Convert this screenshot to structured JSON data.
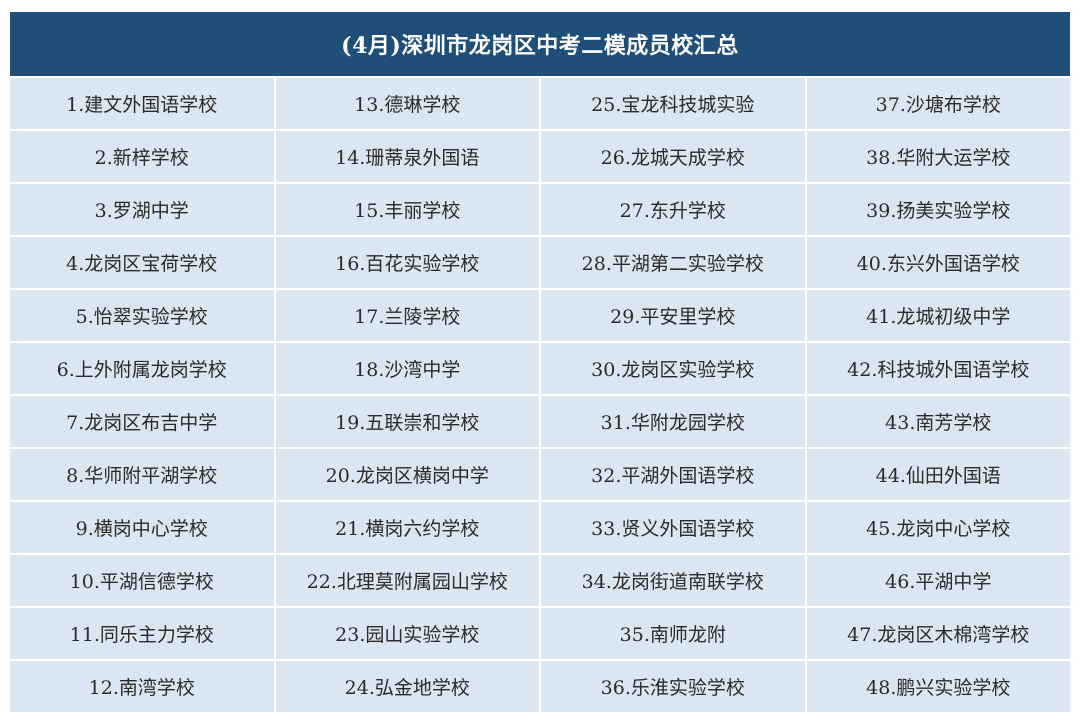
{
  "title": "(4月)深圳市龙岗区中考二模成员校汇总",
  "colors": {
    "header_bg": "#1f4e79",
    "header_text": "#ffffff",
    "cell_bg": "#dae6f2",
    "cell_text": "#2b2b2b"
  },
  "rows": [
    [
      "1.建文外国语学校",
      "13.德琳学校",
      "25.宝龙科技城实验",
      "37.沙塘布学校"
    ],
    [
      "2.新梓学校",
      "14.珊蒂泉外国语",
      "26.龙城天成学校",
      "38.华附大运学校"
    ],
    [
      "3.罗湖中学",
      "15.丰丽学校",
      "27.东升学校",
      "39.扬美实验学校"
    ],
    [
      "4.龙岗区宝荷学校",
      "16.百花实验学校",
      "28.平湖第二实验学校",
      "40.东兴外国语学校"
    ],
    [
      "5.怡翠实验学校",
      "17.兰陵学校",
      "29.平安里学校",
      "41.龙城初级中学"
    ],
    [
      "6.上外附属龙岗学校",
      "18.沙湾中学",
      "30.龙岗区实验学校",
      "42.科技城外国语学校"
    ],
    [
      "7.龙岗区布吉中学",
      "19.五联崇和学校",
      "31.华附龙园学校",
      "43.南芳学校"
    ],
    [
      "8.华师附平湖学校",
      "20.龙岗区横岗中学",
      "32.平湖外国语学校",
      "44.仙田外国语"
    ],
    [
      "9.横岗中心学校",
      "21.横岗六约学校",
      "33.贤义外国语学校",
      "45.龙岗中心学校"
    ],
    [
      "10.平湖信德学校",
      "22.北理莫附属园山学校",
      "34.龙岗街道南联学校",
      "46.平湖中学"
    ],
    [
      "11.同乐主力学校",
      "23.园山实验学校",
      "35.南师龙附",
      "47.龙岗区木棉湾学校"
    ],
    [
      "12.南湾学校",
      "24.弘金地学校",
      "36.乐淮实验学校",
      "48.鹏兴实验学校"
    ]
  ]
}
